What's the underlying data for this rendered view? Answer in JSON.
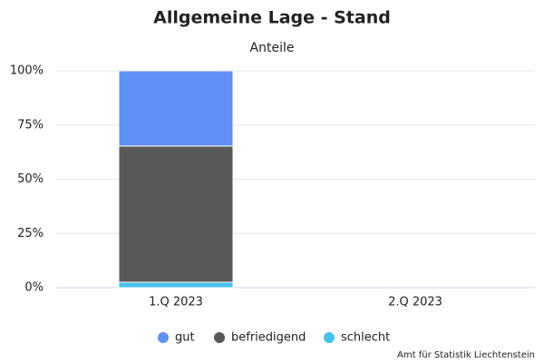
{
  "chart_data": {
    "type": "stacked-bar",
    "title": "Allgemeine Lage - Stand",
    "subtitle": "Anteile",
    "categories": [
      "1.Q 2023",
      "2.Q 2023"
    ],
    "series": [
      {
        "name": "gut",
        "color": "#6090f8",
        "values": [
          34.7,
          null
        ]
      },
      {
        "name": "befriedigend",
        "color": "#595959",
        "values": [
          62.8,
          null
        ]
      },
      {
        "name": "schlecht",
        "color": "#45c2eb",
        "values": [
          2.5,
          null
        ]
      }
    ],
    "ylim": [
      0,
      100
    ],
    "yticks": [
      {
        "value": 0,
        "label": "0%"
      },
      {
        "value": 25,
        "label": "25%"
      },
      {
        "value": 50,
        "label": "50%"
      },
      {
        "value": 75,
        "label": "75%"
      },
      {
        "value": 100,
        "label": "100%"
      }
    ],
    "grid": true,
    "legend": "bottom",
    "credit": "Amt für Statistik Liechtenstein"
  }
}
